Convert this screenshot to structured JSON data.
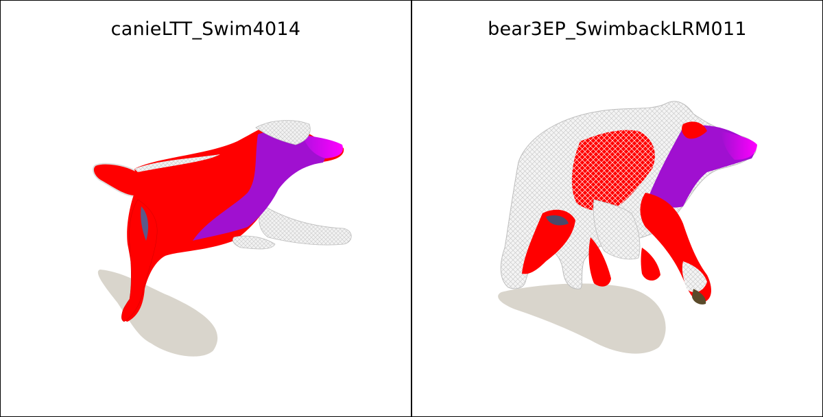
{
  "panels": [
    {
      "title": "canieLTT_Swim4014",
      "colors": {
        "red": "#ff0000",
        "magenta": "#ff00ff",
        "purple": "#a010d0",
        "mesh": "#e8e8e8",
        "shadow": "#d9d5cc"
      }
    },
    {
      "title": "bear3EP_SwimbackLRM011",
      "colors": {
        "red": "#ff0000",
        "magenta": "#ff00ff",
        "purple": "#a010d0",
        "mesh": "#e8e8e8",
        "shadow": "#d9d5cc"
      }
    }
  ]
}
